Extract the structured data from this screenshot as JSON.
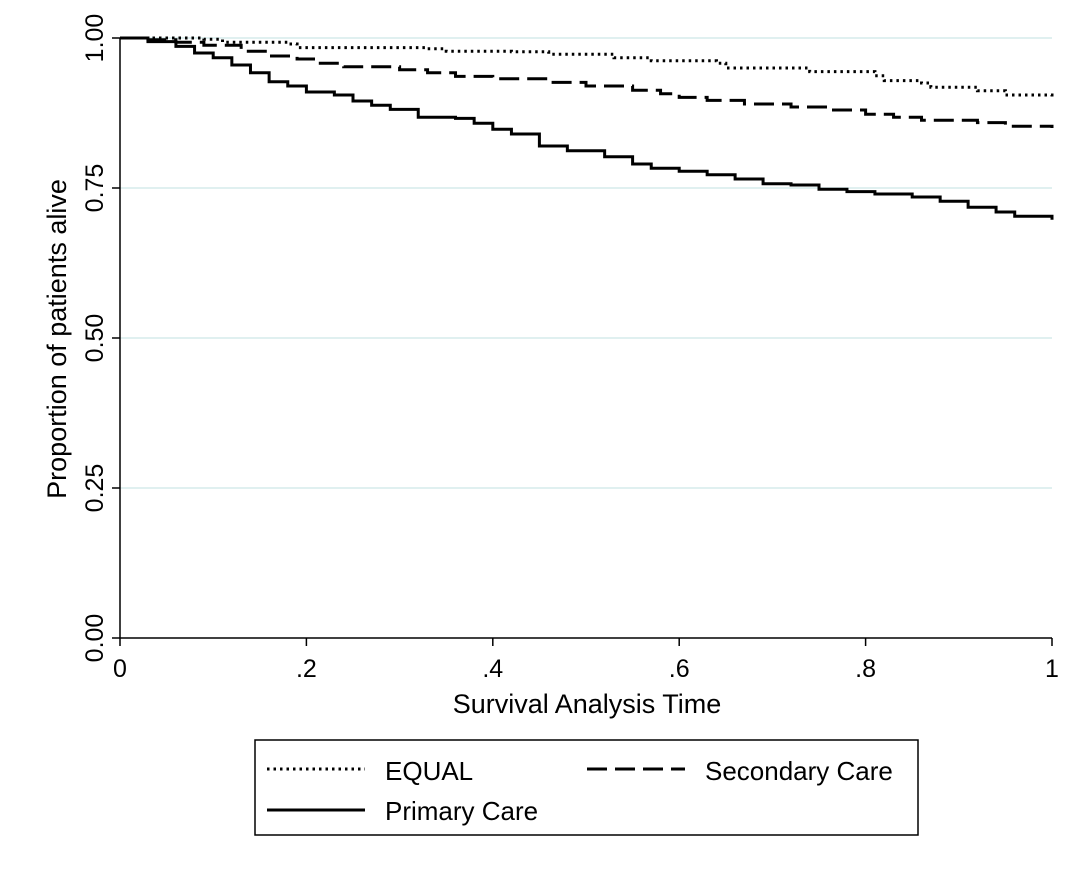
{
  "chart_data": {
    "type": "line",
    "xlabel": "Survival Analysis Time",
    "ylabel": "Proportion of patients alive",
    "xlim": [
      0,
      1
    ],
    "ylim": [
      0,
      1
    ],
    "x_ticks": [
      "0",
      ".2",
      ".4",
      ".6",
      ".8",
      "1"
    ],
    "x_tick_values": [
      0,
      0.2,
      0.4,
      0.6,
      0.8,
      1
    ],
    "y_ticks": [
      "0.00",
      "0.25",
      "0.50",
      "0.75",
      "1.00"
    ],
    "y_tick_values": [
      0,
      0.25,
      0.5,
      0.75,
      1
    ],
    "grid": "horizontal",
    "legend_position": "bottom",
    "series": [
      {
        "name": "EQUAL",
        "style": "dotted",
        "step": true,
        "points": [
          [
            0,
            1
          ],
          [
            0.09,
            0.998
          ],
          [
            0.11,
            0.993
          ],
          [
            0.18,
            0.99
          ],
          [
            0.19,
            0.984
          ],
          [
            0.33,
            0.982
          ],
          [
            0.35,
            0.978
          ],
          [
            0.42,
            0.977
          ],
          [
            0.46,
            0.973
          ],
          [
            0.53,
            0.967
          ],
          [
            0.57,
            0.962
          ],
          [
            0.64,
            0.958
          ],
          [
            0.65,
            0.95
          ],
          [
            0.74,
            0.944
          ],
          [
            0.81,
            0.937
          ],
          [
            0.82,
            0.929
          ],
          [
            0.86,
            0.925
          ],
          [
            0.87,
            0.918
          ],
          [
            0.92,
            0.912
          ],
          [
            0.95,
            0.905
          ],
          [
            1,
            0.9
          ]
        ]
      },
      {
        "name": "Secondary Care",
        "style": "dashed",
        "step": true,
        "points": [
          [
            0,
            1
          ],
          [
            0.03,
            0.997
          ],
          [
            0.06,
            0.993
          ],
          [
            0.09,
            0.988
          ],
          [
            0.13,
            0.978
          ],
          [
            0.16,
            0.97
          ],
          [
            0.19,
            0.965
          ],
          [
            0.21,
            0.958
          ],
          [
            0.24,
            0.952
          ],
          [
            0.3,
            0.947
          ],
          [
            0.33,
            0.942
          ],
          [
            0.36,
            0.936
          ],
          [
            0.4,
            0.932
          ],
          [
            0.46,
            0.926
          ],
          [
            0.5,
            0.92
          ],
          [
            0.55,
            0.913
          ],
          [
            0.58,
            0.907
          ],
          [
            0.6,
            0.901
          ],
          [
            0.63,
            0.896
          ],
          [
            0.67,
            0.89
          ],
          [
            0.72,
            0.885
          ],
          [
            0.76,
            0.88
          ],
          [
            0.8,
            0.873
          ],
          [
            0.83,
            0.868
          ],
          [
            0.86,
            0.863
          ],
          [
            0.92,
            0.859
          ],
          [
            0.95,
            0.853
          ],
          [
            1,
            0.85
          ]
        ]
      },
      {
        "name": "Primary Care",
        "style": "solid",
        "step": true,
        "points": [
          [
            0,
            1
          ],
          [
            0.03,
            0.994
          ],
          [
            0.06,
            0.986
          ],
          [
            0.08,
            0.975
          ],
          [
            0.1,
            0.967
          ],
          [
            0.12,
            0.955
          ],
          [
            0.14,
            0.942
          ],
          [
            0.16,
            0.927
          ],
          [
            0.18,
            0.92
          ],
          [
            0.2,
            0.91
          ],
          [
            0.23,
            0.905
          ],
          [
            0.25,
            0.895
          ],
          [
            0.27,
            0.888
          ],
          [
            0.29,
            0.881
          ],
          [
            0.32,
            0.868
          ],
          [
            0.36,
            0.866
          ],
          [
            0.38,
            0.858
          ],
          [
            0.4,
            0.848
          ],
          [
            0.42,
            0.84
          ],
          [
            0.45,
            0.82
          ],
          [
            0.48,
            0.812
          ],
          [
            0.52,
            0.802
          ],
          [
            0.55,
            0.79
          ],
          [
            0.57,
            0.783
          ],
          [
            0.6,
            0.778
          ],
          [
            0.63,
            0.772
          ],
          [
            0.66,
            0.765
          ],
          [
            0.69,
            0.757
          ],
          [
            0.72,
            0.755
          ],
          [
            0.75,
            0.748
          ],
          [
            0.78,
            0.744
          ],
          [
            0.81,
            0.74
          ],
          [
            0.85,
            0.735
          ],
          [
            0.88,
            0.728
          ],
          [
            0.91,
            0.718
          ],
          [
            0.94,
            0.71
          ],
          [
            0.96,
            0.703
          ],
          [
            1,
            0.697
          ]
        ]
      }
    ]
  },
  "legend": {
    "items": [
      {
        "label": "EQUAL",
        "style": "dotted"
      },
      {
        "label": "Secondary Care",
        "style": "dashed"
      },
      {
        "label": "Primary Care",
        "style": "solid"
      }
    ]
  },
  "colors": {
    "line": "#000000",
    "grid": "#d6ecec",
    "background": "#ffffff"
  }
}
